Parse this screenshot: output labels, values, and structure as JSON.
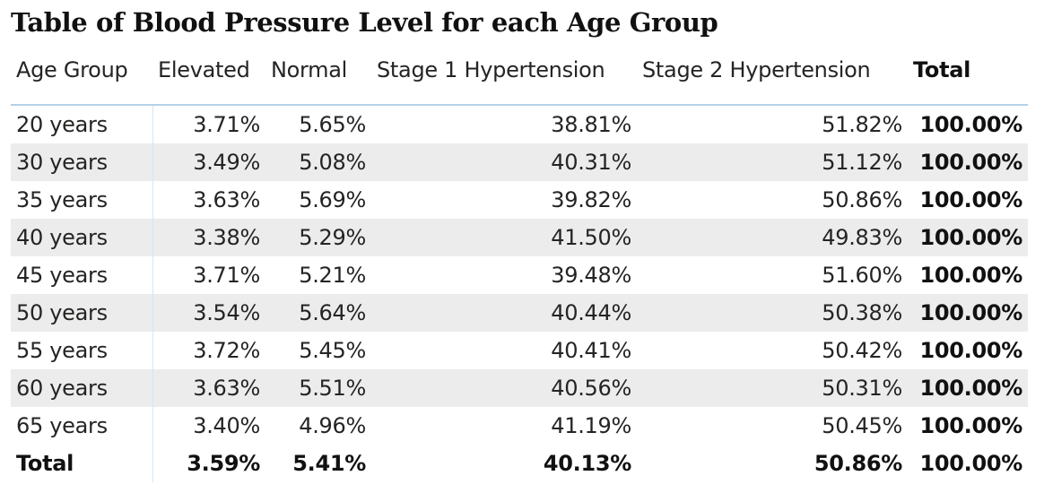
{
  "title": "Table of Blood Pressure Level for each Age Group",
  "table": {
    "columns": [
      "Age Group",
      "Elevated",
      "Normal",
      "Stage 1 Hypertension",
      "Stage 2 Hypertension",
      "Total"
    ],
    "rows": [
      {
        "age": "20 years",
        "elevated": "3.71%",
        "normal": "5.65%",
        "stage1": "38.81%",
        "stage2": "51.82%",
        "total": "100.00%"
      },
      {
        "age": "30 years",
        "elevated": "3.49%",
        "normal": "5.08%",
        "stage1": "40.31%",
        "stage2": "51.12%",
        "total": "100.00%"
      },
      {
        "age": "35 years",
        "elevated": "3.63%",
        "normal": "5.69%",
        "stage1": "39.82%",
        "stage2": "50.86%",
        "total": "100.00%"
      },
      {
        "age": "40 years",
        "elevated": "3.38%",
        "normal": "5.29%",
        "stage1": "41.50%",
        "stage2": "49.83%",
        "total": "100.00%"
      },
      {
        "age": "45 years",
        "elevated": "3.71%",
        "normal": "5.21%",
        "stage1": "39.48%",
        "stage2": "51.60%",
        "total": "100.00%"
      },
      {
        "age": "50 years",
        "elevated": "3.54%",
        "normal": "5.64%",
        "stage1": "40.44%",
        "stage2": "50.38%",
        "total": "100.00%"
      },
      {
        "age": "55 years",
        "elevated": "3.72%",
        "normal": "5.45%",
        "stage1": "40.41%",
        "stage2": "50.42%",
        "total": "100.00%"
      },
      {
        "age": "60 years",
        "elevated": "3.63%",
        "normal": "5.51%",
        "stage1": "40.56%",
        "stage2": "50.31%",
        "total": "100.00%"
      },
      {
        "age": "65 years",
        "elevated": "3.40%",
        "normal": "4.96%",
        "stage1": "41.19%",
        "stage2": "50.45%",
        "total": "100.00%"
      }
    ],
    "total_row": {
      "age": "Total",
      "elevated": "3.59%",
      "normal": "5.41%",
      "stage1": "40.13%",
      "stage2": "50.86%",
      "total": "100.00%"
    }
  },
  "colors": {
    "band": "#ececec",
    "header_rule": "#b3d1e6",
    "text": "#252423"
  }
}
